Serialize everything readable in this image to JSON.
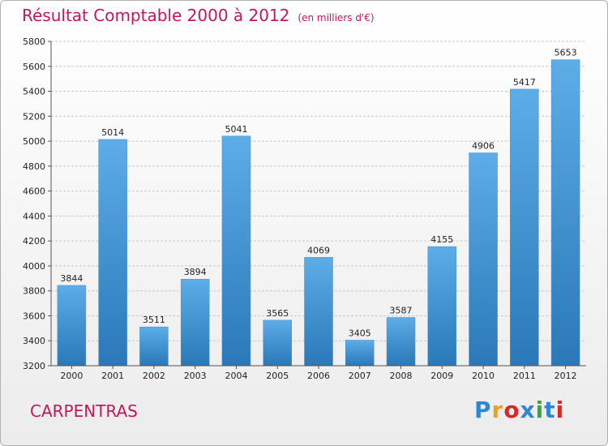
{
  "chart_data": {
    "type": "bar",
    "title": "Résultat Comptable 2000 à 2012",
    "subtitle": "(en milliers d'€)",
    "categories": [
      "2000",
      "2001",
      "2002",
      "2003",
      "2004",
      "2005",
      "2006",
      "2007",
      "2008",
      "2009",
      "2010",
      "2011",
      "2012"
    ],
    "values": [
      3844,
      5014,
      3511,
      3894,
      5041,
      3565,
      4069,
      3405,
      3587,
      4155,
      4906,
      5417,
      5653
    ],
    "ylim": [
      3200,
      5800
    ],
    "yticks": [
      3200,
      3400,
      3600,
      3800,
      4000,
      4200,
      4400,
      4600,
      4800,
      5000,
      5200,
      5400,
      5600,
      5800
    ],
    "grid": true,
    "xlabel": "",
    "ylabel": "",
    "colors": {
      "bar_light": "#5dade8",
      "bar_dark": "#2a78b8",
      "title": "#c2185b"
    }
  },
  "footer": {
    "city": "CARPENTRAS",
    "logo": "Proxiti",
    "logo_colors": [
      "#2e86d4",
      "#f0a020",
      "#d62828",
      "#2e86d4",
      "#3aa835",
      "#2e86d4",
      "#d62828"
    ]
  }
}
